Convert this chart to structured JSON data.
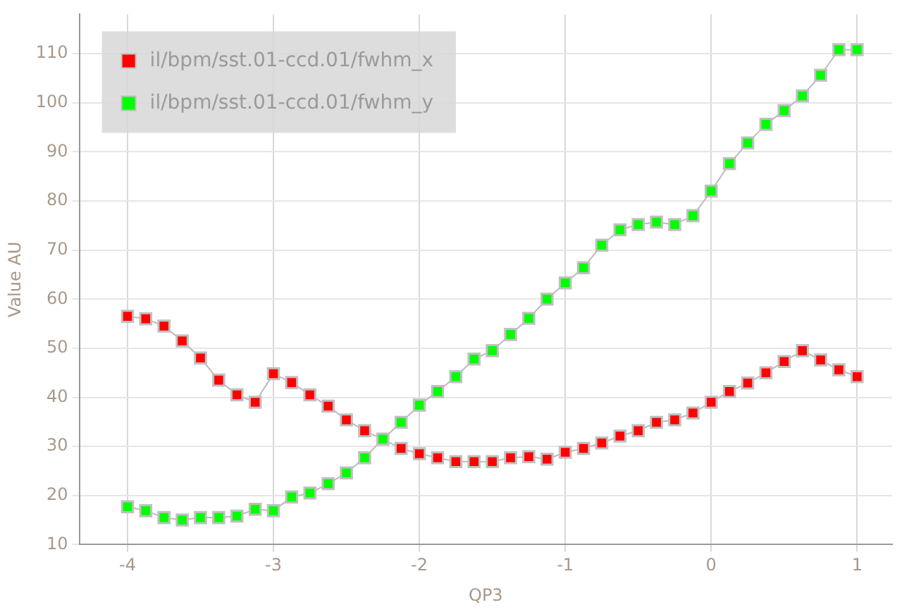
{
  "chart_data": {
    "type": "line",
    "xlabel": "QP3",
    "ylabel": "Value AU",
    "x": [
      -4,
      -3.875,
      -3.75,
      -3.625,
      -3.5,
      -3.375,
      -3.25,
      -3.125,
      -3,
      -2.875,
      -2.75,
      -2.625,
      -2.5,
      -2.375,
      -2.25,
      -2.125,
      -2,
      -1.875,
      -1.75,
      -1.625,
      -1.5,
      -1.375,
      -1.25,
      -1.125,
      -1,
      -0.875,
      -0.75,
      -0.625,
      -0.5,
      -0.375,
      -0.25,
      -0.125,
      0,
      0.125,
      0.25,
      0.375,
      0.5,
      0.625,
      0.75,
      0.875,
      1
    ],
    "series": [
      {
        "name": "il/bpm/sst.01-ccd.01/fwhm_x",
        "color": "#ff0000",
        "values": [
          56.5,
          56,
          54.5,
          51.5,
          48,
          43.5,
          40.5,
          39,
          44.8,
          43,
          40.5,
          38.2,
          35.4,
          33.2,
          null,
          29.6,
          28.5,
          27.7,
          26.9,
          26.9,
          26.9,
          27.7,
          27.9,
          27.4,
          28.8,
          29.6,
          30.7,
          32.1,
          33.2,
          34.9,
          35.4,
          36.8,
          39,
          41.2,
          42.9,
          45,
          47.3,
          49.5,
          47.6,
          45.6,
          44.2
        ]
      },
      {
        "name": "il/bpm/sst.01-ccd.01/fwhm_y",
        "color": "#00ff00",
        "values": [
          17.7,
          16.9,
          15.5,
          15,
          15.5,
          15.5,
          15.8,
          17.2,
          16.9,
          19.7,
          20.5,
          22.4,
          24.6,
          27.7,
          31.5,
          34.9,
          38.4,
          41.2,
          44.2,
          47.8,
          49.5,
          52.8,
          56.1,
          60,
          63.3,
          66.4,
          71,
          74.1,
          75.2,
          75.7,
          75.2,
          77,
          82,
          87.6,
          91.8,
          95.6,
          98.4,
          101.4,
          105.6,
          110.8,
          110.8
        ]
      }
    ],
    "xlim": [
      -4.33,
      1.24
    ],
    "ylim": [
      10,
      118
    ],
    "xticks": [
      -4,
      -3,
      -2,
      -1,
      0,
      1
    ],
    "yticks": [
      10,
      20,
      30,
      40,
      50,
      60,
      70,
      80,
      90,
      100,
      110
    ],
    "grid": true,
    "legend": "top left",
    "marker": "square",
    "line_style": "solid"
  }
}
